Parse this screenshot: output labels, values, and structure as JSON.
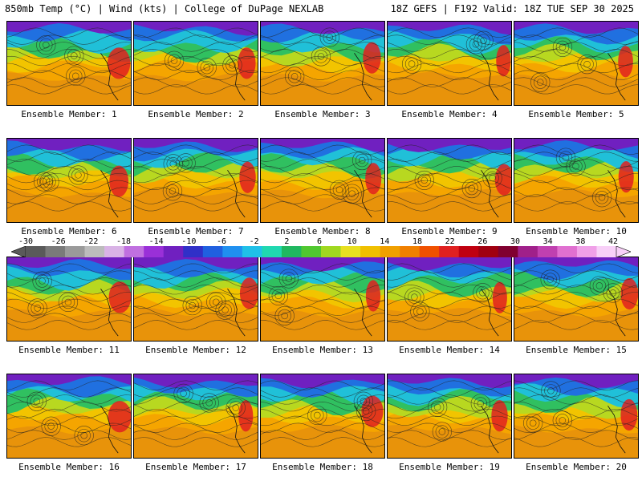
{
  "header": {
    "left": "850mb Temp (°C) | Wind (kts) | College of DuPage NEXLAB",
    "right": "18Z GEFS | F192 Valid: 18Z TUE SEP 30 2025"
  },
  "panel_label_prefix": "Ensemble Member:",
  "members": [
    "1",
    "2",
    "3",
    "4",
    "5",
    "6",
    "7",
    "8",
    "9",
    "10",
    "11",
    "12",
    "13",
    "14",
    "15",
    "16",
    "17",
    "18",
    "19",
    "20"
  ],
  "colorbar": {
    "ticks": [
      "-30",
      "-26",
      "-22",
      "-18",
      "-14",
      "-10",
      "-6",
      "-2",
      "2",
      "6",
      "10",
      "14",
      "18",
      "22",
      "26",
      "30",
      "34",
      "38",
      "42"
    ],
    "colors": [
      "#5a5a5a",
      "#7a7a7a",
      "#9a9a9a",
      "#bcbcbc",
      "#d9b3e6",
      "#c070e0",
      "#9a30d8",
      "#7020c0",
      "#3030c8",
      "#2060e0",
      "#2090f0",
      "#20c0e8",
      "#20d8b0",
      "#20b860",
      "#50c830",
      "#a0d820",
      "#e8e020",
      "#f0c000",
      "#f0a000",
      "#f08000",
      "#f05000",
      "#e02020",
      "#c00010",
      "#a00010",
      "#800030",
      "#a0208a",
      "#c040b0",
      "#e070d0",
      "#f0a0e8",
      "#f8d0f8"
    ]
  }
}
